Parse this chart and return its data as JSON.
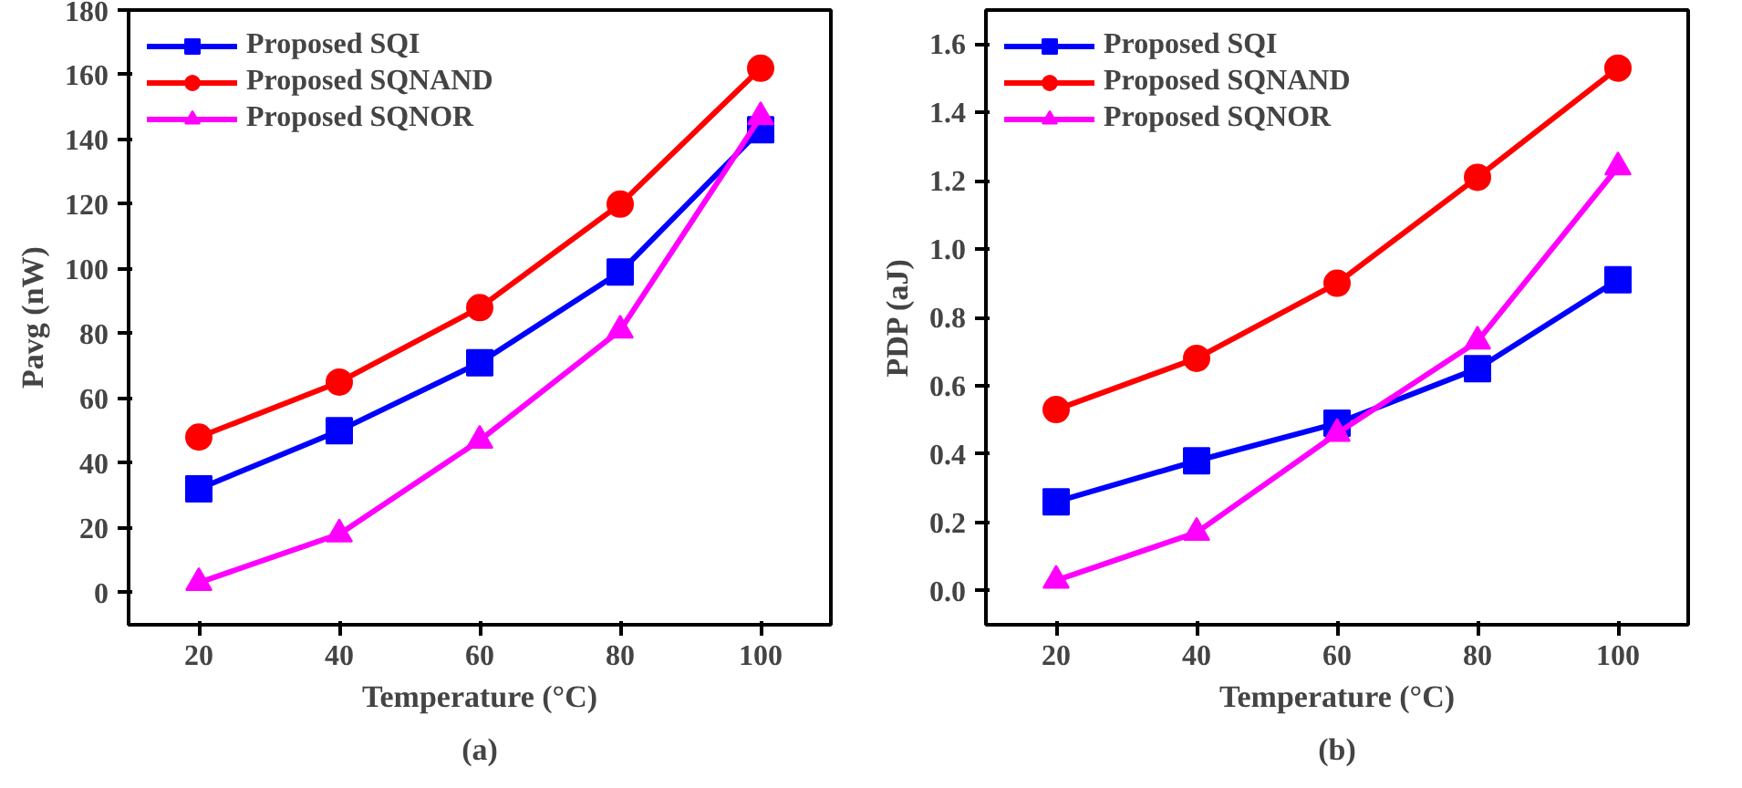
{
  "chart_data": [
    {
      "type": "line",
      "title": "(a)",
      "xlabel": "Temperature (°C)",
      "ylabel": "Pavg (nW)",
      "x": [
        20,
        40,
        60,
        80,
        100
      ],
      "xlim": [
        10,
        110
      ],
      "xticks": [
        20,
        40,
        60,
        80,
        100
      ],
      "ylim": [
        -10,
        180
      ],
      "yticks": [
        0,
        20,
        40,
        60,
        80,
        100,
        120,
        140,
        160,
        180
      ],
      "grid": false,
      "legend": "top left",
      "line_style": "solid",
      "series": [
        {
          "name": "Proposed SQI",
          "color": "#0000ff",
          "marker": "square",
          "values": [
            32,
            50,
            71,
            99,
            143
          ]
        },
        {
          "name": "Proposed SQNAND",
          "color": "#ff0000",
          "marker": "circle",
          "values": [
            48,
            65,
            88,
            120,
            162
          ]
        },
        {
          "name": "Proposed SQNOR",
          "color": "#ff00ff",
          "marker": "triangle",
          "values": [
            3,
            18,
            47,
            81,
            147
          ]
        }
      ]
    },
    {
      "type": "line",
      "title": "(b)",
      "xlabel": "Temperature (°C)",
      "ylabel": "PDP (aJ)",
      "x": [
        20,
        40,
        60,
        80,
        100
      ],
      "xlim": [
        10,
        110
      ],
      "xticks": [
        20,
        40,
        60,
        80,
        100
      ],
      "ylim": [
        -0.1,
        1.7
      ],
      "yticks": [
        {
          "value": 0,
          "label": "0.0"
        },
        0.2,
        0.4,
        0.6,
        0.8,
        {
          "value": 1,
          "label": "1.0"
        },
        1.2,
        1.4,
        1.6
      ],
      "grid": false,
      "legend": "top left",
      "line_style": "solid",
      "series": [
        {
          "name": "Proposed SQI",
          "color": "#0000ff",
          "marker": "square",
          "values": [
            0.26,
            0.38,
            0.49,
            0.65,
            0.91
          ]
        },
        {
          "name": "Proposed SQNAND",
          "color": "#ff0000",
          "marker": "circle",
          "values": [
            0.53,
            0.68,
            0.9,
            1.21,
            1.53
          ]
        },
        {
          "name": "Proposed SQNOR",
          "color": "#ff00ff",
          "marker": "triangle",
          "values": [
            0.03,
            0.17,
            0.46,
            0.73,
            1.24
          ]
        }
      ]
    }
  ]
}
